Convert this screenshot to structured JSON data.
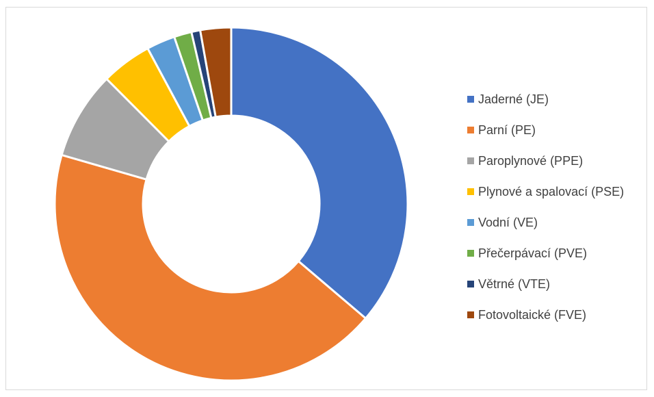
{
  "chart_data": {
    "type": "pie",
    "variant": "donut",
    "legend_position": "right",
    "categories": [
      "Jaderné (JE)",
      "Parní (PE)",
      "Paroplynové (PPE)",
      "Plynové a spalovací (PSE)",
      "Vodní (VE)",
      "Přečerpávací (PVE)",
      "Větrné (VTE)",
      "Fotovoltaické (FVE)"
    ],
    "values": [
      36.0,
      43.0,
      8.0,
      4.6,
      2.6,
      1.6,
      0.8,
      2.8
    ],
    "colors": [
      "#4472C4",
      "#ED7D31",
      "#A5A5A5",
      "#FFC000",
      "#5B9BD5",
      "#70AD47",
      "#264478",
      "#9E480E"
    ]
  }
}
